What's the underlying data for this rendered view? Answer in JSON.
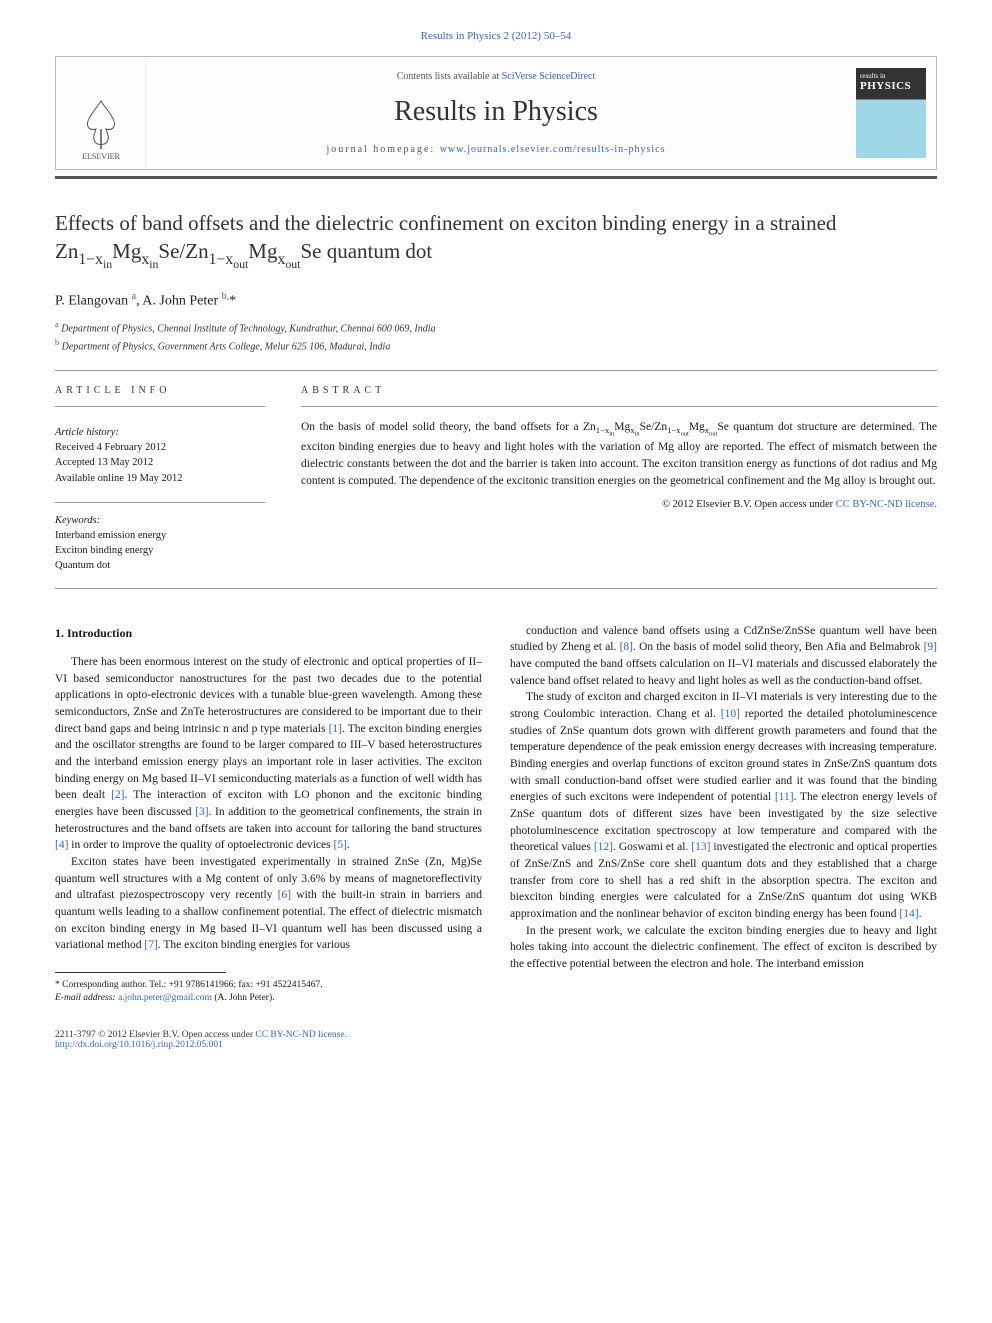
{
  "header": {
    "citation": "Results in Physics 2 (2012) 50–54",
    "contents_prefix": "Contents lists available at ",
    "contents_link": "SciVerse ScienceDirect",
    "journal_name": "Results in Physics",
    "homepage_prefix": "journal homepage: ",
    "homepage_url": "www.journals.elsevier.com/results-in-physics",
    "elsevier_label": "ELSEVIER",
    "cover_small": "results in",
    "cover_title": "PHYSICS"
  },
  "article": {
    "title_html": "Effects of band offsets and the dielectric confinement on exciton binding energy in a strained Zn<sub>1−x<sub>in</sub></sub>Mg<sub>x<sub>in</sub></sub>Se/Zn<sub>1−x<sub>out</sub></sub>Mg<sub>x<sub>out</sub></sub>Se quantum dot",
    "authors_html": "P. Elangovan <sup>a</sup>, A. John Peter <sup>b,</sup>*",
    "affiliations": [
      {
        "sup": "a",
        "text": "Department of Physics, Chennai Institute of Technology, Kundrathur, Chennai 600 069, India"
      },
      {
        "sup": "b",
        "text": "Department of Physics, Government Arts College, Melur 625 106, Madurai, India"
      }
    ]
  },
  "info": {
    "heading": "article info",
    "history_label": "Article history:",
    "history": [
      "Received 4 February 2012",
      "Accepted 13 May 2012",
      "Available online 19 May 2012"
    ],
    "keywords_label": "Keywords:",
    "keywords": [
      "Interband emission energy",
      "Exciton binding energy",
      "Quantum dot"
    ]
  },
  "abstract": {
    "heading": "abstract",
    "text_html": "On the basis of model solid theory, the band offsets for a Zn<sub>1−x<sub>in</sub></sub>Mg<sub>x<sub>in</sub></sub>Se/Zn<sub>1−x<sub>out</sub></sub>Mg<sub>x<sub>out</sub></sub>Se quantum dot structure are determined. The exciton binding energies due to heavy and light holes with the variation of Mg alloy are reported. The effect of mismatch between the dielectric constants between the dot and the barrier is taken into account. The exciton transition energy as functions of dot radius and Mg content is computed. The dependence of the excitonic transition energies on the geometrical confinement and the Mg alloy is brought out.",
    "copyright_prefix": "© 2012 Elsevier B.V. ",
    "open_access": "Open access under ",
    "license_link": "CC BY-NC-ND license."
  },
  "section1": {
    "heading": "1. Introduction",
    "p1_html": "There has been enormous interest on the study of electronic and optical properties of II–VI based semiconductor nanostructures for the past two decades due to the potential applications in opto-electronic devices with a tunable blue-green wavelength. Among these semiconductors, ZnSe and ZnTe heterostructures are considered to be important due to their direct band gaps and being intrinsic n and p type materials <span class=\"ref-link\">[1]</span>. The exciton binding energies and the oscillator strengths are found to be larger compared to III–V based heterostructures and the interband emission energy plays an important role in laser activities. The exciton binding energy on Mg based II–VI semiconducting materials as a function of well width has been dealt <span class=\"ref-link\">[2]</span>. The interaction of exciton with LO phonon and the excitonic binding energies have been discussed <span class=\"ref-link\">[3]</span>. In addition to the geometrical confinements, the strain in heterostructures and the band offsets are taken into account for tailoring the band structures <span class=\"ref-link\">[4]</span> in order to improve the quality of optoelectronic devices <span class=\"ref-link\">[5]</span>.",
    "p2_html": "Exciton states have been investigated experimentally in strained ZnSe (Zn, Mg)Se quantum well structures with a Mg content of only 3.6% by means of magnetoreflectivity and ultrafast piezospectroscopy very recently <span class=\"ref-link\">[6]</span> with the built-in strain in barriers and quantum wells leading to a shallow confinement potential. The effect of dielectric mismatch on exciton binding energy in Mg based II–VI quantum well has been discussed using a variational method <span class=\"ref-link\">[7]</span>. The exciton binding energies for various",
    "p3_html": "conduction and valence band offsets using a CdZnSe/ZnSSe quantum well have been studied by Zheng et al. <span class=\"ref-link\">[8]</span>. On the basis of model solid theory, Ben Afia and Belmabrok <span class=\"ref-link\">[9]</span> have computed the band offsets calculation on II–VI materials and discussed elaborately the valence band offset related to heavy and light holes as well as the conduction-band offset.",
    "p4_html": "The study of exciton and charged exciton in II–VI materials is very interesting due to the strong Coulombic interaction. Chang et al. <span class=\"ref-link\">[10]</span> reported the detailed photoluminescence studies of ZnSe quantum dots grown with different growth parameters and found that the temperature dependence of the peak emission energy decreases with increasing temperature. Binding energies and overlap functions of exciton ground states in ZnSe/ZnS quantum dots with small conduction-band offset were studied earlier and it was found that the binding energies of such excitons were independent of potential <span class=\"ref-link\">[11]</span>. The electron energy levels of ZnSe quantum dots of different sizes have been investigated by the size selective photoluminescence excitation spectroscopy at low temperature and compared with the theoretical values <span class=\"ref-link\">[12]</span>. Goswami et al. <span class=\"ref-link\">[13]</span> investigated the electronic and optical properties of ZnSe/ZnS and ZnS/ZnSe core shell quantum dots and they established that a charge transfer from core to shell has a red shift in the absorption spectra. The exciton and biexciton binding energies were calculated for a ZnSe/ZnS quantum dot using WKB approximation and the nonlinear behavior of exciton binding energy has been found <span class=\"ref-link\">[14]</span>.",
    "p5_html": "In the present work, we calculate the exciton binding energies due to heavy and light holes taking into account the dielectric confinement. The effect of exciton is described by the effective potential between the electron and hole. The interband emission"
  },
  "footnote": {
    "corr_label": "* Corresponding author. Tel.: +91 9786141966; fax: +91 4522415467.",
    "email_label": "E-mail address:",
    "email": "a.john.peter@gmail.com",
    "email_who": "(A. John Peter)."
  },
  "footer": {
    "issn_line": "2211-3797 © 2012 Elsevier B.V. ",
    "open_access": "Open access under ",
    "license_link": "CC BY-NC-ND license.",
    "doi": "http://dx.doi.org/10.1016/j.rinp.2012.05.001"
  },
  "colors": {
    "link": "#3366cc",
    "text": "#1a1a1a",
    "rule": "#999999",
    "bar": "#555555",
    "elsevier_orange": "#e87722"
  }
}
